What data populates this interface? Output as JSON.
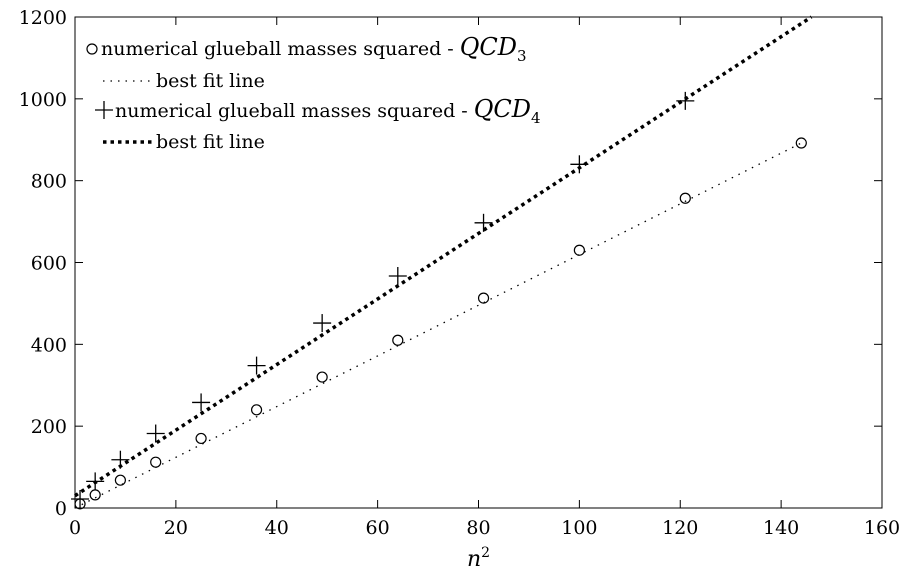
{
  "chart_data": {
    "type": "scatter",
    "xlabel": "n",
    "xlabel_sup": "2",
    "xlim": [
      0,
      160
    ],
    "ylim": [
      0,
      1200
    ],
    "xticks": [
      "0",
      "20",
      "40",
      "60",
      "80",
      "100",
      "120",
      "140",
      "160"
    ],
    "yticks": [
      "0",
      "200",
      "400",
      "600",
      "800",
      "1000",
      "1200"
    ],
    "grid": false,
    "legend_position": "top-left",
    "series": [
      {
        "name": "numerical glueball masses squared - ",
        "name_math": "QCD",
        "name_sub": "3",
        "marker": "circle",
        "points": [
          [
            1,
            10
          ],
          [
            4,
            32
          ],
          [
            9,
            68
          ],
          [
            16,
            112
          ],
          [
            25,
            170
          ],
          [
            36,
            240
          ],
          [
            49,
            320
          ],
          [
            64,
            410
          ],
          [
            81,
            513
          ],
          [
            100,
            630
          ],
          [
            121,
            757
          ],
          [
            144,
            892
          ]
        ]
      },
      {
        "name": "best fit line",
        "style": "dotted",
        "line": [
          [
            0,
            0
          ],
          [
            144,
            892
          ]
        ]
      },
      {
        "name": "numerical glueball masses squared - ",
        "name_math": "QCD",
        "name_sub": "4",
        "marker": "plus",
        "points": [
          [
            1,
            22
          ],
          [
            4,
            65
          ],
          [
            9,
            118
          ],
          [
            16,
            182
          ],
          [
            25,
            258
          ],
          [
            36,
            348
          ],
          [
            49,
            452
          ],
          [
            64,
            567
          ],
          [
            81,
            697
          ],
          [
            100,
            840
          ],
          [
            121,
            995
          ]
        ]
      },
      {
        "name": "best fit line",
        "style": "dotted-heavy",
        "line": [
          [
            0,
            30
          ],
          [
            146,
            1200
          ]
        ]
      }
    ]
  }
}
